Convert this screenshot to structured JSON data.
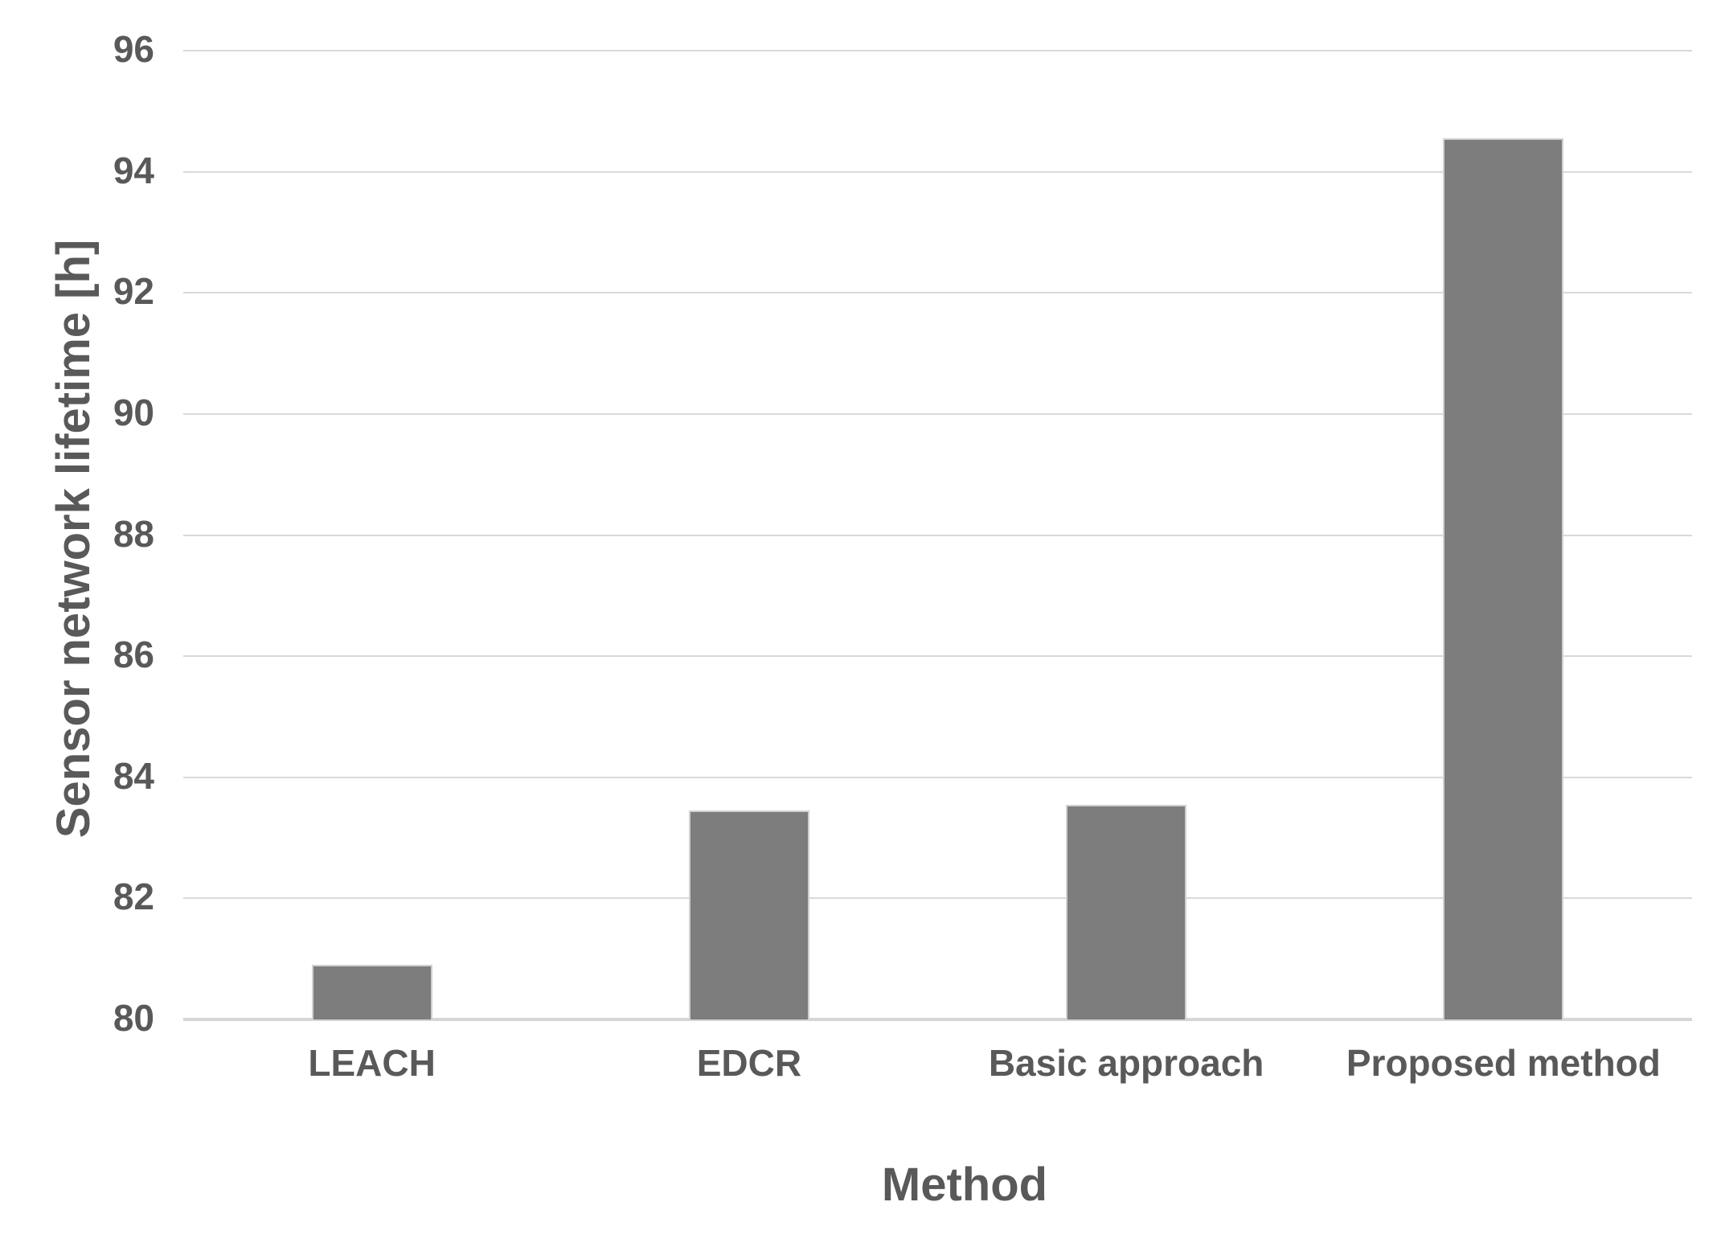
{
  "chart_data": {
    "type": "bar",
    "title": "",
    "categories": [
      "LEACH",
      "EDCR",
      "Basic approach",
      "Proposed method"
    ],
    "values": [
      80.9,
      83.45,
      83.55,
      94.55
    ],
    "xlabel": "Method",
    "ylabel": "Sensor network lifetime [h]",
    "ylim": [
      80,
      96
    ],
    "ytick_step": 2,
    "yticks": [
      80,
      82,
      84,
      86,
      88,
      90,
      92,
      94,
      96
    ],
    "grid": true,
    "legend": false,
    "data_labels": false
  },
  "colors": {
    "background": "#ffffff",
    "bar_fill": "#7d7d7d",
    "bar_border": "#d0d0d0",
    "grid_line": "#d9d9d9",
    "axis_line": "#d6d6d6",
    "text": "#595959"
  }
}
